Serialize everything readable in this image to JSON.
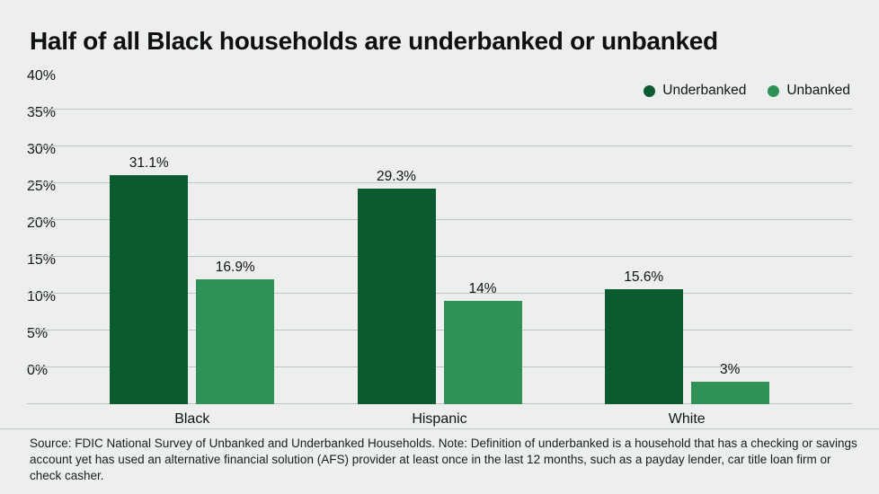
{
  "chart_data": {
    "type": "bar",
    "title": "Half of all Black households are underbanked or unbanked",
    "categories": [
      "Black",
      "Hispanic",
      "White"
    ],
    "series": [
      {
        "name": "Underbanked",
        "color": "#0c5a30",
        "values": [
          31.1,
          29.3,
          15.6
        ]
      },
      {
        "name": "Unbanked",
        "color": "#2f9156",
        "values": [
          16.9,
          14,
          3
        ]
      }
    ],
    "value_labels": [
      [
        "31.1%",
        "16.9%"
      ],
      [
        "29.3%",
        "14%"
      ],
      [
        "15.6%",
        "3%"
      ]
    ],
    "ylim": [
      0,
      40
    ],
    "ytick_step": 5,
    "ytick_labels": [
      "0%",
      "5%",
      "10%",
      "15%",
      "20%",
      "25%",
      "30%",
      "35%",
      "40%"
    ],
    "grid": true,
    "legend_position": "top-right"
  },
  "source_note": "Source: FDIC National Survey of Unbanked and Underbanked Households. Note: Definition of underbanked is a household that has a checking or savings account yet has used an alternative financial solution (AFS) provider at least once in the last 12 months, such as a payday lender, car title loan firm or check casher.",
  "colors": {
    "background": "#edefee",
    "gridline": "#bfc3c1",
    "text": "#111513"
  }
}
